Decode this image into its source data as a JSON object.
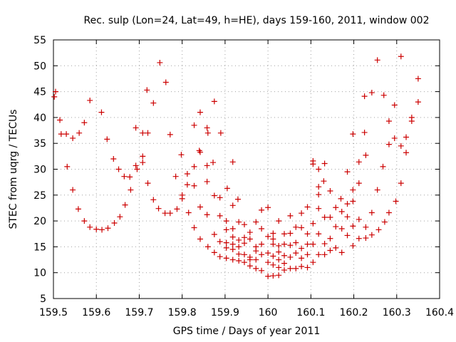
{
  "chart_data": {
    "type": "scatter",
    "title": "Rec. sulp (Lon=24, Lat=49, h=HE), days 159-160, 2011, window 002",
    "xlabel": "GPS time / Days of year 2011",
    "ylabel": "STEC from uqrg / TECUs",
    "xlim": [
      159.5,
      160.4
    ],
    "ylim": [
      5,
      55
    ],
    "xticks": [
      159.5,
      159.6,
      159.7,
      159.8,
      159.9,
      160.0,
      160.1,
      160.2,
      160.3,
      160.4
    ],
    "xtick_labels": [
      "159.5",
      "159.6",
      "159.7",
      "159.8",
      "159.9",
      "160",
      "160.1",
      "160.2",
      "160.3",
      "160.4"
    ],
    "yticks": [
      5,
      10,
      15,
      20,
      25,
      30,
      35,
      40,
      45,
      50,
      55
    ],
    "ytick_labels": [
      "5",
      "10",
      "15",
      "20",
      "25",
      "30",
      "35",
      "40",
      "45",
      "50",
      "55"
    ],
    "grid": true,
    "marker": "+",
    "color": "#cc0000",
    "points": [
      [
        159.505,
        45.0
      ],
      [
        159.502,
        44.0
      ],
      [
        159.515,
        39.5
      ],
      [
        159.518,
        36.8
      ],
      [
        159.53,
        36.8
      ],
      [
        159.532,
        30.5
      ],
      [
        159.545,
        36.0
      ],
      [
        159.545,
        26.0
      ],
      [
        159.56,
        37.0
      ],
      [
        159.558,
        22.3
      ],
      [
        159.572,
        39.0
      ],
      [
        159.572,
        20.0
      ],
      [
        159.585,
        43.3
      ],
      [
        159.585,
        18.8
      ],
      [
        159.6,
        18.4
      ],
      [
        159.612,
        41.0
      ],
      [
        159.613,
        18.3
      ],
      [
        159.625,
        35.8
      ],
      [
        159.627,
        18.6
      ],
      [
        159.64,
        32.0
      ],
      [
        159.642,
        19.6
      ],
      [
        159.652,
        30.0
      ],
      [
        159.655,
        20.8
      ],
      [
        159.665,
        28.6
      ],
      [
        159.667,
        23.1
      ],
      [
        159.678,
        28.5
      ],
      [
        159.68,
        26.0
      ],
      [
        159.692,
        38.0
      ],
      [
        159.692,
        30.7
      ],
      [
        159.695,
        30.0
      ],
      [
        159.708,
        37.0
      ],
      [
        159.708,
        32.5
      ],
      [
        159.708,
        31.3
      ],
      [
        159.718,
        45.3
      ],
      [
        159.72,
        37.0
      ],
      [
        159.72,
        27.3
      ],
      [
        159.733,
        42.8
      ],
      [
        159.733,
        24.1
      ],
      [
        159.748,
        50.6
      ],
      [
        159.745,
        22.4
      ],
      [
        159.762,
        46.8
      ],
      [
        159.76,
        21.5
      ],
      [
        159.772,
        36.7
      ],
      [
        159.772,
        21.5
      ],
      [
        159.785,
        28.6
      ],
      [
        159.788,
        22.3
      ],
      [
        159.798,
        32.8
      ],
      [
        159.8,
        25.0
      ],
      [
        159.8,
        24.3
      ],
      [
        159.812,
        29.1
      ],
      [
        159.812,
        27.0
      ],
      [
        159.815,
        21.6
      ],
      [
        159.828,
        38.5
      ],
      [
        159.828,
        30.5
      ],
      [
        159.828,
        26.8
      ],
      [
        159.828,
        18.7
      ],
      [
        159.842,
        41.0
      ],
      [
        159.84,
        33.6
      ],
      [
        159.842,
        33.3
      ],
      [
        159.842,
        22.7
      ],
      [
        159.842,
        16.5
      ],
      [
        159.858,
        38.0
      ],
      [
        159.86,
        37.0
      ],
      [
        159.858,
        30.7
      ],
      [
        159.858,
        27.6
      ],
      [
        159.858,
        21.2
      ],
      [
        159.86,
        15.0
      ],
      [
        159.875,
        43.1
      ],
      [
        159.872,
        31.3
      ],
      [
        159.875,
        24.9
      ],
      [
        159.875,
        17.4
      ],
      [
        159.875,
        13.9
      ],
      [
        159.89,
        37.0
      ],
      [
        159.888,
        24.5
      ],
      [
        159.888,
        21.0
      ],
      [
        159.888,
        16.0
      ],
      [
        159.888,
        13.1
      ],
      [
        159.905,
        26.3
      ],
      [
        159.903,
        20.0
      ],
      [
        159.903,
        18.3
      ],
      [
        159.903,
        15.8
      ],
      [
        159.903,
        14.8
      ],
      [
        159.903,
        12.8
      ],
      [
        159.918,
        31.4
      ],
      [
        159.918,
        23.0
      ],
      [
        159.918,
        18.5
      ],
      [
        159.918,
        16.9
      ],
      [
        159.918,
        15.5
      ],
      [
        159.918,
        14.5
      ],
      [
        159.918,
        12.5
      ],
      [
        159.93,
        24.2
      ],
      [
        159.932,
        19.8
      ],
      [
        159.932,
        16.3
      ],
      [
        159.932,
        15.0
      ],
      [
        159.932,
        13.6
      ],
      [
        159.932,
        12.3
      ],
      [
        159.945,
        19.3
      ],
      [
        159.945,
        16.8
      ],
      [
        159.945,
        15.7
      ],
      [
        159.945,
        13.5
      ],
      [
        159.945,
        12.0
      ],
      [
        159.958,
        17.8
      ],
      [
        159.958,
        16.5
      ],
      [
        159.958,
        13.0
      ],
      [
        159.958,
        11.3
      ],
      [
        159.958,
        12.5
      ],
      [
        159.972,
        19.8
      ],
      [
        159.972,
        15.0
      ],
      [
        159.972,
        14.2
      ],
      [
        159.972,
        12.5
      ],
      [
        159.972,
        10.8
      ],
      [
        159.985,
        22.1
      ],
      [
        159.985,
        18.5
      ],
      [
        159.985,
        15.5
      ],
      [
        159.985,
        13.5
      ],
      [
        159.985,
        10.4
      ],
      [
        160.0,
        22.6
      ],
      [
        160.0,
        17.0
      ],
      [
        160.0,
        13.8
      ],
      [
        160.0,
        12.0
      ],
      [
        160.0,
        9.3
      ],
      [
        160.012,
        17.6
      ],
      [
        160.012,
        16.5
      ],
      [
        160.012,
        15.5
      ],
      [
        160.012,
        13.2
      ],
      [
        160.012,
        11.5
      ],
      [
        160.012,
        9.4
      ],
      [
        160.025,
        20.0
      ],
      [
        160.025,
        15.2
      ],
      [
        160.025,
        14.0
      ],
      [
        160.025,
        12.5
      ],
      [
        160.025,
        11.0
      ],
      [
        160.025,
        9.5
      ],
      [
        160.038,
        17.5
      ],
      [
        160.038,
        15.5
      ],
      [
        160.038,
        13.3
      ],
      [
        160.038,
        11.8
      ],
      [
        160.038,
        10.5
      ],
      [
        160.052,
        21.0
      ],
      [
        160.052,
        17.6
      ],
      [
        160.052,
        15.3
      ],
      [
        160.052,
        13.0
      ],
      [
        160.052,
        10.8
      ],
      [
        160.065,
        18.8
      ],
      [
        160.065,
        15.8
      ],
      [
        160.065,
        13.8
      ],
      [
        160.065,
        10.8
      ],
      [
        160.078,
        21.5
      ],
      [
        160.078,
        18.7
      ],
      [
        160.078,
        14.7
      ],
      [
        160.078,
        12.8
      ],
      [
        160.078,
        11.2
      ],
      [
        160.092,
        22.7
      ],
      [
        160.092,
        17.5
      ],
      [
        160.092,
        15.5
      ],
      [
        160.092,
        13.5
      ],
      [
        160.092,
        11.0
      ],
      [
        160.105,
        31.6
      ],
      [
        160.105,
        31.0
      ],
      [
        160.105,
        19.5
      ],
      [
        160.105,
        15.5
      ],
      [
        160.105,
        12.0
      ],
      [
        160.118,
        30.0
      ],
      [
        160.118,
        26.6
      ],
      [
        160.118,
        25.1
      ],
      [
        160.118,
        22.4
      ],
      [
        160.118,
        17.5
      ],
      [
        160.118,
        13.5
      ],
      [
        160.132,
        31.1
      ],
      [
        160.13,
        27.7
      ],
      [
        160.132,
        20.7
      ],
      [
        160.132,
        15.6
      ],
      [
        160.132,
        13.5
      ],
      [
        160.145,
        25.8
      ],
      [
        160.145,
        20.7
      ],
      [
        160.145,
        16.6
      ],
      [
        160.145,
        14.3
      ],
      [
        160.158,
        22.6
      ],
      [
        160.158,
        18.9
      ],
      [
        160.158,
        14.8
      ],
      [
        160.17,
        24.3
      ],
      [
        160.172,
        21.8
      ],
      [
        160.172,
        18.5
      ],
      [
        160.172,
        13.9
      ],
      [
        160.185,
        29.5
      ],
      [
        160.185,
        23.3
      ],
      [
        160.185,
        20.8
      ],
      [
        160.185,
        17.2
      ],
      [
        160.198,
        36.8
      ],
      [
        160.198,
        26.0
      ],
      [
        160.198,
        23.8
      ],
      [
        160.198,
        19.0
      ],
      [
        160.198,
        15.2
      ],
      [
        160.212,
        31.4
      ],
      [
        160.212,
        27.3
      ],
      [
        160.212,
        20.3
      ],
      [
        160.212,
        16.6
      ],
      [
        160.225,
        44.1
      ],
      [
        160.225,
        37.1
      ],
      [
        160.228,
        32.7
      ],
      [
        160.228,
        18.8
      ],
      [
        160.228,
        16.7
      ],
      [
        160.242,
        44.8
      ],
      [
        160.242,
        21.6
      ],
      [
        160.242,
        17.3
      ],
      [
        160.255,
        51.1
      ],
      [
        160.255,
        26.0
      ],
      [
        160.258,
        18.3
      ],
      [
        160.27,
        44.3
      ],
      [
        160.268,
        30.5
      ],
      [
        160.272,
        19.8
      ],
      [
        160.282,
        39.3
      ],
      [
        160.282,
        34.8
      ],
      [
        160.282,
        21.6
      ],
      [
        160.295,
        42.4
      ],
      [
        160.295,
        36.0
      ],
      [
        160.298,
        23.8
      ],
      [
        160.31,
        51.8
      ],
      [
        160.31,
        34.5
      ],
      [
        160.31,
        27.3
      ],
      [
        160.322,
        36.2
      ],
      [
        160.322,
        33.2
      ],
      [
        160.335,
        40.0
      ],
      [
        160.335,
        39.3
      ],
      [
        160.35,
        47.5
      ],
      [
        160.35,
        43.0
      ]
    ]
  }
}
